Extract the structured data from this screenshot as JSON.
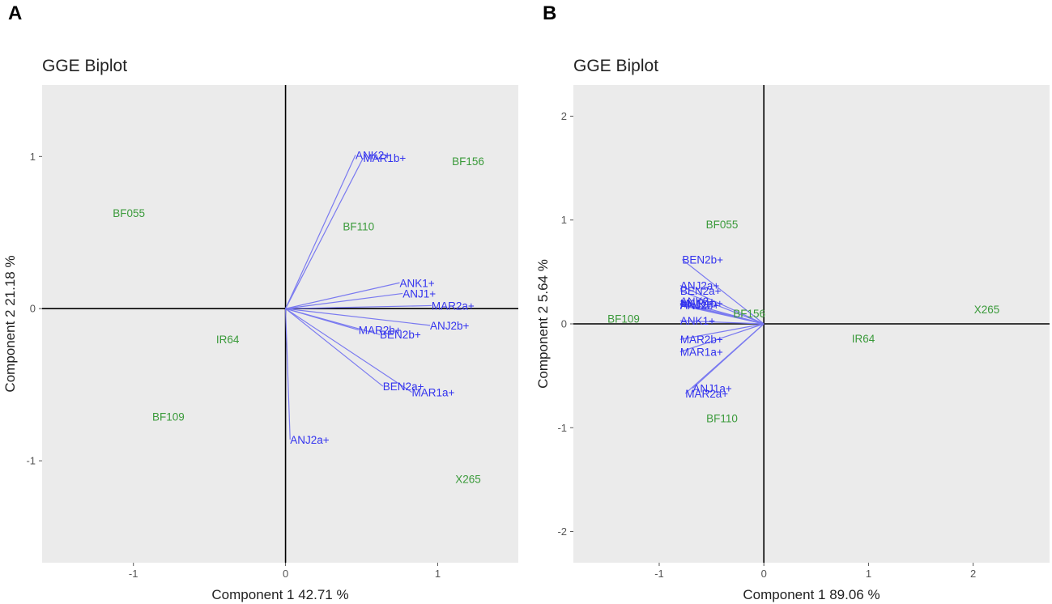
{
  "chart_data": [
    {
      "type": "scatter",
      "panel_label": "A",
      "title": "GGE Biplot",
      "xlabel": "Component 1 42.71 %",
      "ylabel": "Component 2 21.18 %",
      "xlim": [
        -1.6,
        1.53
      ],
      "ylim": [
        -1.67,
        1.47
      ],
      "xticks": [
        -1,
        0,
        1
      ],
      "yticks": [
        -1,
        0,
        1
      ],
      "xtick_labels": [
        "-1",
        "0",
        "1"
      ],
      "ytick_labels": [
        "-1",
        "0",
        "1"
      ],
      "colors": {
        "environment": "#3333ee",
        "genotype": "#3a9a3a",
        "vector": "#7a7af0"
      },
      "environments": [
        {
          "name": "ANK2+",
          "x": 0.46,
          "y": 1.01
        },
        {
          "name": "MAR1b+",
          "x": 0.51,
          "y": 0.99
        },
        {
          "name": "ANK1+",
          "x": 0.75,
          "y": 0.17
        },
        {
          "name": "ANJ1+",
          "x": 0.77,
          "y": 0.1
        },
        {
          "name": "MAR2a+",
          "x": 0.96,
          "y": 0.02
        },
        {
          "name": "ANJ2b+",
          "x": 0.95,
          "y": -0.11
        },
        {
          "name": "MAR2b+",
          "x": 0.48,
          "y": -0.14
        },
        {
          "name": "BEN2b+",
          "x": 0.62,
          "y": -0.17
        },
        {
          "name": "BEN2a+",
          "x": 0.64,
          "y": -0.51
        },
        {
          "name": "MAR1a+",
          "x": 0.83,
          "y": -0.55
        },
        {
          "name": "ANJ2a+",
          "x": 0.03,
          "y": -0.86
        }
      ],
      "genotypes": [
        {
          "name": "BF156",
          "x": 1.2,
          "y": 0.97
        },
        {
          "name": "BF055",
          "x": -1.03,
          "y": 0.63
        },
        {
          "name": "BF110",
          "x": 0.48,
          "y": 0.54
        },
        {
          "name": "IR64",
          "x": -0.38,
          "y": -0.2
        },
        {
          "name": "BF109",
          "x": -0.77,
          "y": -0.71
        },
        {
          "name": "X265",
          "x": 1.2,
          "y": -1.12
        }
      ]
    },
    {
      "type": "scatter",
      "panel_label": "B",
      "title": "GGE Biplot",
      "xlabel": "Component 1 89.06 %",
      "ylabel": "Component 2 5.64 %",
      "xlim": [
        -1.82,
        2.73
      ],
      "ylim": [
        -2.3,
        2.3
      ],
      "xticks": [
        -1,
        0,
        1,
        2
      ],
      "yticks": [
        -2,
        -1,
        0,
        1,
        2
      ],
      "xtick_labels": [
        "-1",
        "0",
        "1",
        "2"
      ],
      "ytick_labels": [
        "-2",
        "-1",
        "0",
        "1",
        "2"
      ],
      "colors": {
        "environment": "#3333ee",
        "genotype": "#3a9a3a",
        "vector": "#7a7af0"
      },
      "environments": [
        {
          "name": "BEN2b+",
          "x": -0.78,
          "y": 0.62
        },
        {
          "name": "ANJ2a+",
          "x": -0.8,
          "y": 0.37
        },
        {
          "name": "BEN2a+",
          "x": -0.8,
          "y": 0.32
        },
        {
          "name": "ANK2+",
          "x": -0.8,
          "y": 0.22
        },
        {
          "name": "ANJ1+",
          "x": -0.8,
          "y": 0.19
        },
        {
          "name": "MAR1b+",
          "x": -0.8,
          "y": 0.2
        },
        {
          "name": "ANJ2b+",
          "x": -0.8,
          "y": 0.18
        },
        {
          "name": "ANK1+",
          "x": -0.8,
          "y": 0.03
        },
        {
          "name": "MAR2b+",
          "x": -0.8,
          "y": -0.15
        },
        {
          "name": "MAR1a+",
          "x": -0.8,
          "y": -0.27
        },
        {
          "name": "ANJ1a+",
          "x": -0.68,
          "y": -0.62
        },
        {
          "name": "MAR2a+",
          "x": -0.75,
          "y": -0.67
        }
      ],
      "genotypes": [
        {
          "name": "BF055",
          "x": -0.4,
          "y": 0.96
        },
        {
          "name": "BF109",
          "x": -1.34,
          "y": 0.05
        },
        {
          "name": "BF156",
          "x": -0.14,
          "y": 0.1
        },
        {
          "name": "X265",
          "x": 2.13,
          "y": 0.14
        },
        {
          "name": "IR64",
          "x": 0.95,
          "y": -0.14
        },
        {
          "name": "BF110",
          "x": -0.4,
          "y": -0.91
        }
      ]
    }
  ]
}
